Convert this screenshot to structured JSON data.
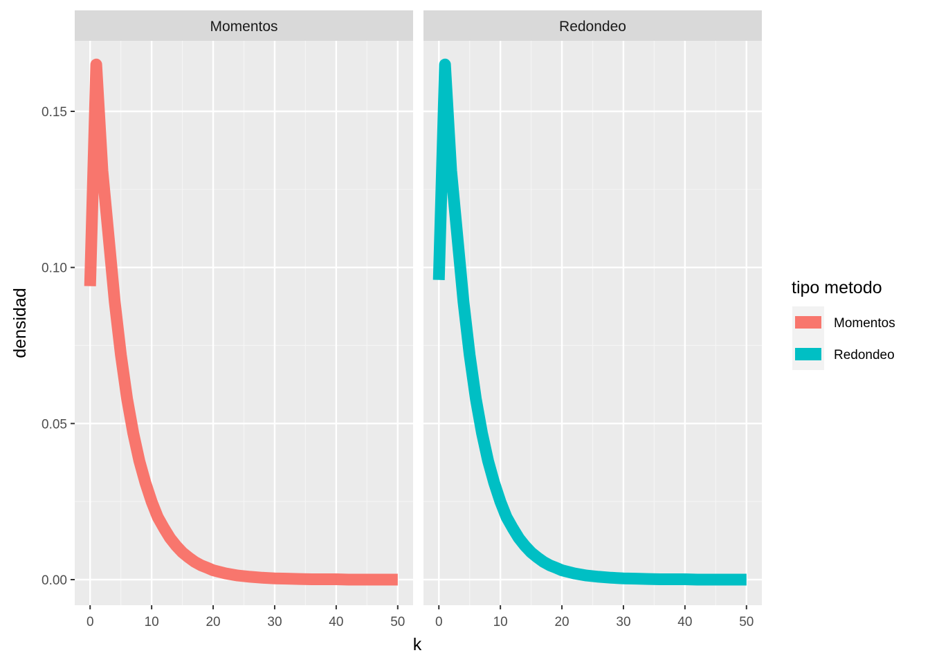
{
  "chart_data": {
    "type": "line",
    "panels": [
      "Momentos",
      "Redondeo"
    ],
    "xlabel": "k",
    "ylabel": "densidad",
    "xlim": [
      -2.5,
      52.5
    ],
    "ylim": [
      -0.0082,
      0.1726
    ],
    "x_ticks": [
      0,
      10,
      20,
      30,
      40,
      50
    ],
    "y_ticks": [
      0.0,
      0.05,
      0.1,
      0.15
    ],
    "y_tick_labels": [
      "0.00",
      "0.05",
      "0.10",
      "0.15"
    ],
    "x_tick_labels": [
      "0",
      "10",
      "20",
      "30",
      "40",
      "50"
    ],
    "grid": true,
    "legend": {
      "title": "tipo metodo",
      "position": "right",
      "entries": [
        {
          "name": "Momentos",
          "color": "#F8766D"
        },
        {
          "name": "Redondeo",
          "color": "#00BFC4"
        }
      ]
    },
    "series": [
      {
        "name": "Momentos",
        "panel": "Momentos",
        "color": "#F8766D",
        "x": [
          0,
          1,
          2,
          3,
          4,
          5,
          6,
          7,
          8,
          9,
          10,
          11,
          12,
          13,
          14,
          15,
          16,
          17,
          18,
          19,
          20,
          22,
          24,
          26,
          28,
          30,
          32,
          34,
          36,
          38,
          40,
          42,
          44,
          46,
          48,
          50
        ],
        "values": [
          0.094,
          0.165,
          0.131,
          0.11,
          0.089,
          0.072,
          0.058,
          0.047,
          0.038,
          0.031,
          0.025,
          0.02,
          0.0165,
          0.0133,
          0.0108,
          0.0087,
          0.0071,
          0.0057,
          0.0046,
          0.0038,
          0.003,
          0.002,
          0.0013,
          0.0009,
          0.0006,
          0.0004,
          0.0003,
          0.0002,
          0.0001,
          0.0001,
          0.0001,
          0.0,
          0.0,
          0.0,
          0.0,
          0.0
        ]
      },
      {
        "name": "Redondeo",
        "panel": "Redondeo",
        "color": "#00BFC4",
        "x": [
          0,
          1,
          2,
          3,
          4,
          5,
          6,
          7,
          8,
          9,
          10,
          11,
          12,
          13,
          14,
          15,
          16,
          17,
          18,
          19,
          20,
          22,
          24,
          26,
          28,
          30,
          32,
          34,
          36,
          38,
          40,
          42,
          44,
          46,
          48,
          50
        ],
        "values": [
          0.096,
          0.165,
          0.131,
          0.11,
          0.089,
          0.072,
          0.058,
          0.047,
          0.038,
          0.031,
          0.025,
          0.02,
          0.0165,
          0.0133,
          0.0108,
          0.0087,
          0.0071,
          0.0057,
          0.0046,
          0.0038,
          0.003,
          0.002,
          0.0013,
          0.0009,
          0.0006,
          0.0004,
          0.0003,
          0.0002,
          0.0001,
          0.0001,
          0.0001,
          0.0,
          0.0,
          0.0,
          0.0,
          0.0
        ]
      }
    ]
  }
}
